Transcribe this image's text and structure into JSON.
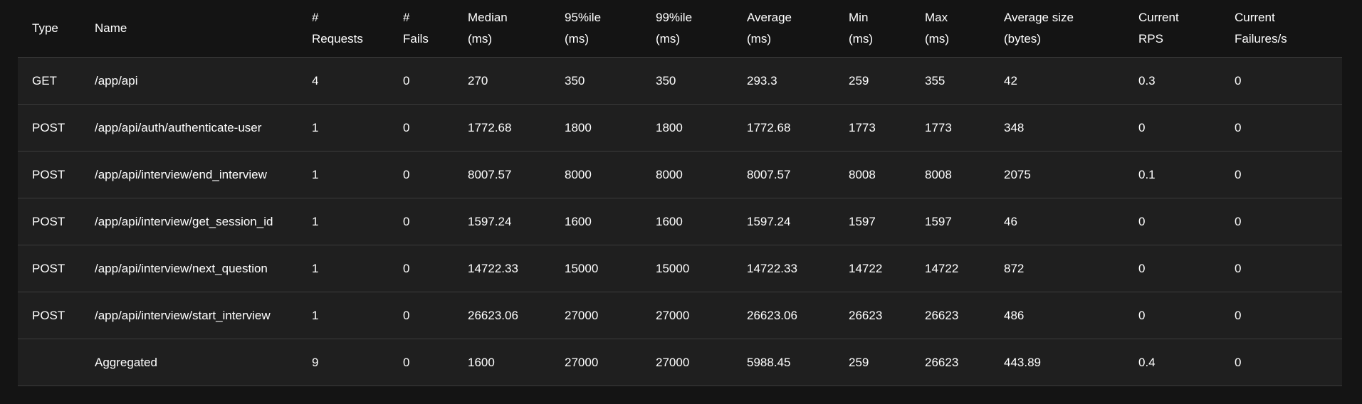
{
  "table": {
    "headers": [
      {
        "line1": "Type",
        "line2": ""
      },
      {
        "line1": "Name",
        "line2": ""
      },
      {
        "line1": "#",
        "line2": "Requests"
      },
      {
        "line1": "#",
        "line2": "Fails"
      },
      {
        "line1": "Median",
        "line2": "(ms)"
      },
      {
        "line1": "95%ile",
        "line2": "(ms)"
      },
      {
        "line1": "99%ile",
        "line2": "(ms)"
      },
      {
        "line1": "Average",
        "line2": "(ms)"
      },
      {
        "line1": "Min",
        "line2": "(ms)"
      },
      {
        "line1": "Max",
        "line2": "(ms)"
      },
      {
        "line1": "Average size",
        "line2": "(bytes)"
      },
      {
        "line1": "Current",
        "line2": "RPS"
      },
      {
        "line1": "Current",
        "line2": "Failures/s"
      }
    ],
    "rows": [
      [
        "GET",
        "/app/api",
        "4",
        "0",
        "270",
        "350",
        "350",
        "293.3",
        "259",
        "355",
        "42",
        "0.3",
        "0"
      ],
      [
        "POST",
        "/app/api/auth/authenticate-user",
        "1",
        "0",
        "1772.68",
        "1800",
        "1800",
        "1772.68",
        "1773",
        "1773",
        "348",
        "0",
        "0"
      ],
      [
        "POST",
        "/app/api/interview/end_interview",
        "1",
        "0",
        "8007.57",
        "8000",
        "8000",
        "8007.57",
        "8008",
        "8008",
        "2075",
        "0.1",
        "0"
      ],
      [
        "POST",
        "/app/api/interview/get_session_id",
        "1",
        "0",
        "1597.24",
        "1600",
        "1600",
        "1597.24",
        "1597",
        "1597",
        "46",
        "0",
        "0"
      ],
      [
        "POST",
        "/app/api/interview/next_question",
        "1",
        "0",
        "14722.33",
        "15000",
        "15000",
        "14722.33",
        "14722",
        "14722",
        "872",
        "0",
        "0"
      ],
      [
        "POST",
        "/app/api/interview/start_interview",
        "1",
        "0",
        "26623.06",
        "27000",
        "27000",
        "26623.06",
        "26623",
        "26623",
        "486",
        "0",
        "0"
      ],
      [
        "",
        "Aggregated",
        "9",
        "0",
        "1600",
        "27000",
        "27000",
        "5988.45",
        "259",
        "26623",
        "443.89",
        "0.4",
        "0"
      ]
    ]
  }
}
